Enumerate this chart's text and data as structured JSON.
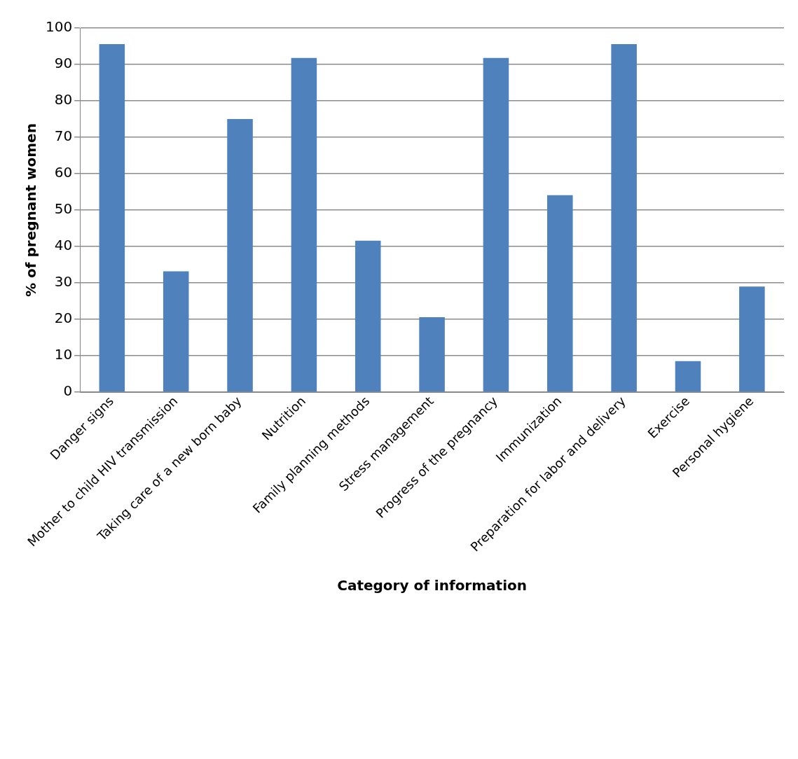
{
  "chart_data": {
    "type": "bar",
    "xlabel": "Category of information",
    "ylabel": "% of pregnant women",
    "categories": [
      "Danger signs",
      "Mother to child HIV transmission",
      "Taking care of a new born baby",
      "Nutrition",
      "Family planning methods",
      "Stress management",
      "Progress of the pregnancy",
      "Immunization",
      "Preparation for labor and delivery",
      "Exercise",
      "Personal hygiene"
    ],
    "values": [
      95.6,
      33.2,
      75.0,
      91.8,
      41.6,
      20.6,
      91.8,
      54.1,
      95.6,
      8.5,
      29.0
    ],
    "color": "#4f81bd",
    "ylim": [
      0,
      100
    ],
    "yticks": [
      0,
      10,
      20,
      30,
      40,
      50,
      60,
      70,
      80,
      90,
      100
    ],
    "grid": "y",
    "legend": false
  }
}
